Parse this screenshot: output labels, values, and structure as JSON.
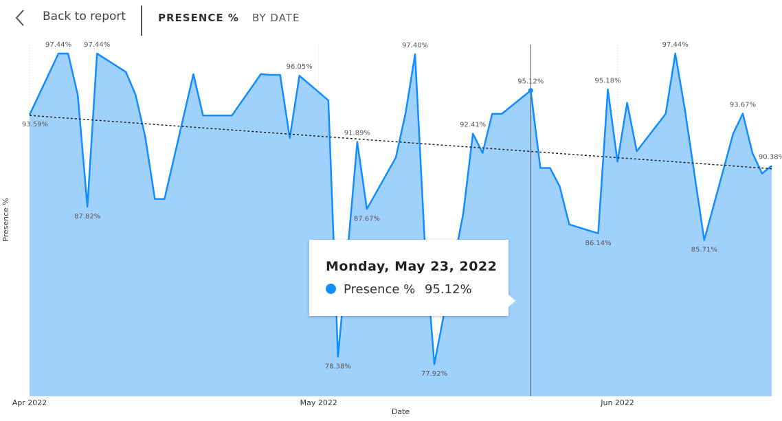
{
  "header": {
    "back": "Back to report",
    "title": "PRESENCE %",
    "subtitle": "BY DATE"
  },
  "chart_data": {
    "type": "area",
    "x_label": "Date",
    "y_label": "Presence %",
    "x": [
      "2022-04-01",
      "2022-04-04",
      "2022-04-05",
      "2022-04-06",
      "2022-04-07",
      "2022-04-08",
      "2022-04-11",
      "2022-04-12",
      "2022-04-13",
      "2022-04-14",
      "2022-04-15",
      "2022-04-18",
      "2022-04-19",
      "2022-04-20",
      "2022-04-21",
      "2022-04-22",
      "2022-04-25",
      "2022-04-26",
      "2022-04-27",
      "2022-04-28",
      "2022-04-29",
      "2022-05-02",
      "2022-05-03",
      "2022-05-04",
      "2022-05-05",
      "2022-05-06",
      "2022-05-09",
      "2022-05-10",
      "2022-05-11",
      "2022-05-12",
      "2022-05-13",
      "2022-05-16",
      "2022-05-17",
      "2022-05-18",
      "2022-05-19",
      "2022-05-20",
      "2022-05-23",
      "2022-05-24",
      "2022-05-25",
      "2022-05-26",
      "2022-05-27",
      "2022-05-30",
      "2022-05-31",
      "2022-06-01",
      "2022-06-02",
      "2022-06-03",
      "2022-06-06",
      "2022-06-07",
      "2022-06-08",
      "2022-06-09",
      "2022-06-10",
      "2022-06-13",
      "2022-06-14",
      "2022-06-15",
      "2022-06-16",
      "2022-06-17"
    ],
    "series": [
      {
        "name": "Presence %",
        "color": "#118dff",
        "fill": "#a0d0fc",
        "values": [
          93.59,
          97.44,
          97.44,
          94.85,
          87.82,
          97.44,
          96.28,
          94.85,
          92.22,
          88.3,
          88.3,
          96.15,
          93.55,
          93.55,
          93.55,
          93.55,
          96.15,
          96.1,
          96.1,
          92.13,
          96.05,
          94.5,
          78.38,
          85.0,
          91.89,
          87.67,
          90.9,
          93.65,
          97.4,
          85.6,
          77.92,
          87.4,
          92.41,
          91.2,
          93.65,
          93.65,
          95.12,
          90.25,
          90.25,
          89.1,
          86.7,
          86.14,
          95.18,
          90.65,
          94.35,
          91.3,
          93.65,
          97.44,
          93.9,
          89.8,
          85.71,
          92.4,
          93.67,
          91.2,
          89.9,
          90.38
        ],
        "value_labels": [
          "93.59%",
          "97.44%",
          null,
          null,
          "87.82%",
          "97.44%",
          null,
          null,
          null,
          null,
          null,
          null,
          null,
          null,
          null,
          null,
          null,
          null,
          null,
          null,
          "96.05%",
          null,
          "78.38%",
          null,
          "91.89%",
          "87.67%",
          null,
          null,
          "97.40%",
          null,
          "77.92%",
          null,
          "92.41%",
          null,
          null,
          null,
          "95.12%",
          null,
          null,
          null,
          null,
          "86.14%",
          "95.18%",
          null,
          null,
          null,
          null,
          "97.44%",
          null,
          null,
          "85.71%",
          null,
          "93.67%",
          null,
          null,
          "90.38%"
        ]
      }
    ],
    "trendline": [
      93.55,
      90.2
    ],
    "xlim": [
      "2022-04-01",
      "2022-06-17"
    ],
    "xticks": [
      {
        "value": "2022-04-01",
        "label": "Apr 2022"
      },
      {
        "value": "2022-05-01",
        "label": "May 2022"
      },
      {
        "value": "2022-06-01",
        "label": "Jun 2022"
      }
    ],
    "ylim": [
      75.9,
      98.0
    ],
    "grid": true,
    "tooltip": {
      "title": "Monday, May 23, 2022",
      "x": "2022-05-23"
    }
  }
}
